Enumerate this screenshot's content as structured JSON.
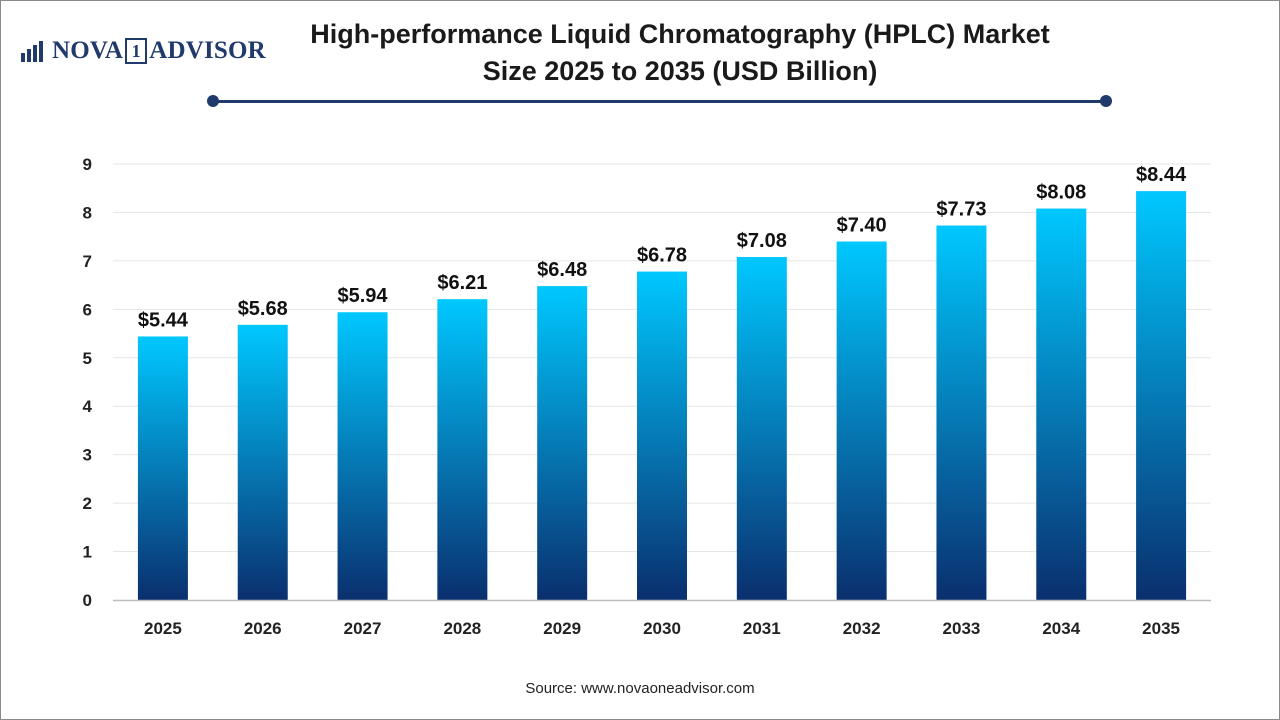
{
  "brand": {
    "name_left": "NOVA",
    "name_box": "1",
    "name_right": "ADVISOR",
    "logo_icon": "bar-chart-icon",
    "color": "#1f3a6b"
  },
  "title_line1": "High-performance Liquid Chromatography (HPLC) Market",
  "title_line2": "Size 2025 to 2035 (USD Billion)",
  "source": "Source: www.novaoneadvisor.com",
  "chart_data": {
    "type": "bar",
    "categories": [
      "2025",
      "2026",
      "2027",
      "2028",
      "2029",
      "2030",
      "2031",
      "2032",
      "2033",
      "2034",
      "2035"
    ],
    "values": [
      5.44,
      5.68,
      5.94,
      6.21,
      6.48,
      6.78,
      7.08,
      7.4,
      7.73,
      8.08,
      8.44
    ],
    "value_labels": [
      "$5.44",
      "$5.68",
      "$5.94",
      "$6.21",
      "$6.48",
      "$6.78",
      "$7.08",
      "$7.40",
      "$7.73",
      "$8.08",
      "$8.44"
    ],
    "title": "High-performance Liquid Chromatography (HPLC) Market Size 2025 to 2035 (USD Billion)",
    "xlabel": "",
    "ylabel": "",
    "ylim": [
      0,
      9
    ],
    "yticks": [
      "0",
      "1",
      "2",
      "3",
      "4",
      "5",
      "6",
      "7",
      "8",
      "9"
    ],
    "grid": true,
    "legend": "none",
    "bar_gradient": [
      "#00c8ff",
      "#0a2f6e"
    ]
  }
}
